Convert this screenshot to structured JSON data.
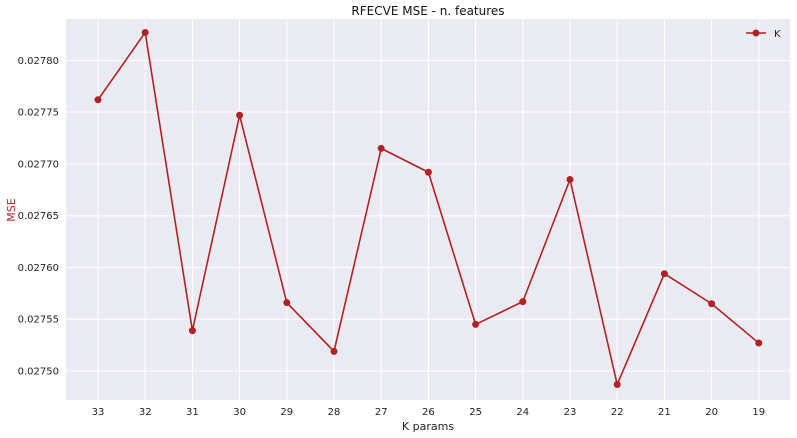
{
  "chart_data": {
    "type": "line",
    "title": "RFECVE MSE - n. features",
    "xlabel": "K params",
    "ylabel": "MSE",
    "categories": [
      "33",
      "32",
      "31",
      "30",
      "29",
      "28",
      "27",
      "26",
      "25",
      "24",
      "23",
      "22",
      "21",
      "20",
      "19"
    ],
    "series": [
      {
        "name": "K",
        "values": [
          0.027762,
          0.027827,
          0.027539,
          0.027747,
          0.027566,
          0.027519,
          0.027715,
          0.027692,
          0.027545,
          0.027567,
          0.027685,
          0.027487,
          0.027594,
          0.027565,
          0.027527
        ],
        "color": "#b22222"
      }
    ],
    "y_ticks": [
      "0.02750",
      "0.02755",
      "0.02760",
      "0.02765",
      "0.02770",
      "0.02775",
      "0.02780"
    ],
    "ylim": [
      0.027472,
      0.02784
    ],
    "grid": true,
    "legend_position": "top-right",
    "colors": {
      "plot_background": "#eaeaf2",
      "grid": "#ffffff",
      "line": "#b22222",
      "ylabel": "#b22222"
    }
  }
}
